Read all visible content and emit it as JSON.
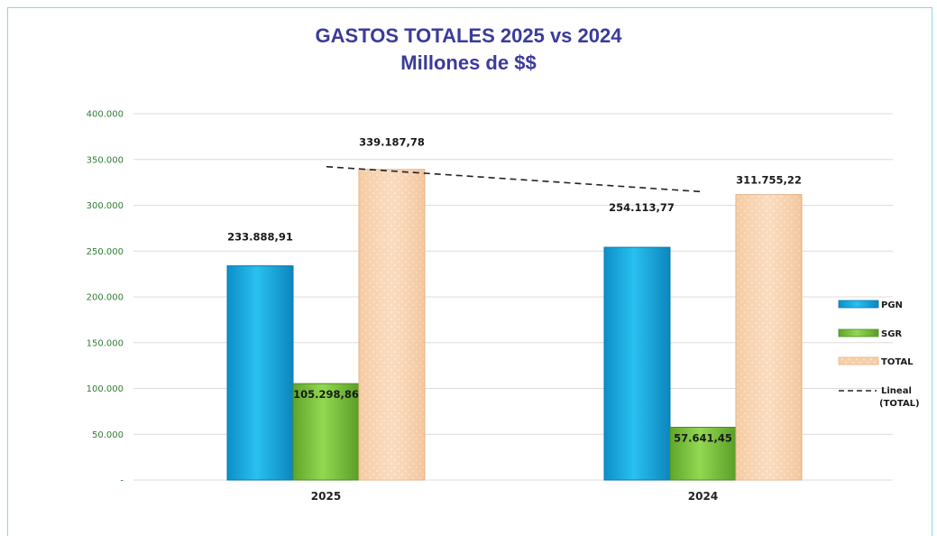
{
  "chart_data": {
    "type": "bar",
    "title": "GASTOS TOTALES 2025 vs 2024",
    "subtitle": "Millones de $$",
    "categories": [
      "2025",
      "2024"
    ],
    "ylim": [
      0,
      400000
    ],
    "yticks": [
      "-",
      "50.000",
      "100.000",
      "150.000",
      "200.000",
      "250.000",
      "300.000",
      "350.000",
      "400.000"
    ],
    "grid": true,
    "legend_position": "right",
    "series": [
      {
        "name": "PGN",
        "color": "#12a9e3",
        "values": [
          233888.91,
          254113.77
        ],
        "labels": [
          "233.888,91",
          "254.113,77"
        ]
      },
      {
        "name": "SGR",
        "color": "#7ec63c",
        "values": [
          105298.86,
          57641.45
        ],
        "labels": [
          "105.298,86",
          "57.641,45"
        ]
      },
      {
        "name": "TOTAL",
        "color": "#f8cfa8",
        "values": [
          339187.78,
          311755.22
        ],
        "labels": [
          "339.187,78",
          "311.755,22"
        ]
      }
    ],
    "trendline": {
      "name": "Lineal (TOTAL)",
      "series": "TOTAL",
      "style": "dashed",
      "color": "#222222"
    }
  }
}
